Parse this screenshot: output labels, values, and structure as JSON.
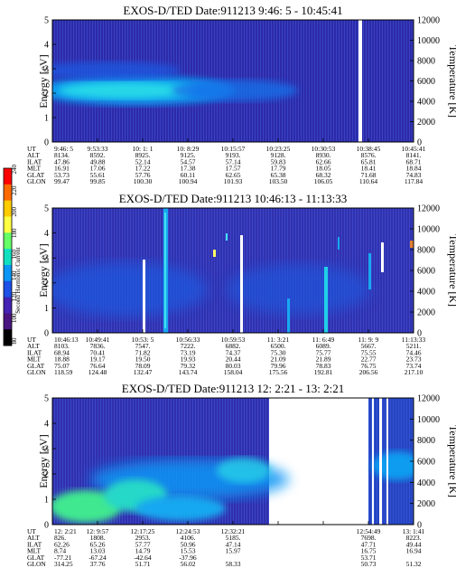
{
  "colorbar": {
    "label": "Second Harmonic Current",
    "ticks": [
      "240",
      "220",
      "200",
      "180",
      "160",
      "140",
      "120",
      "100",
      "80"
    ],
    "colors": [
      "#ff0000",
      "#ff6a00",
      "#ffcc00",
      "#ffff44",
      "#66ff66",
      "#11e0c0",
      "#0a96f5",
      "#1c50e6",
      "#4422b4",
      "#4a1580",
      "#000000"
    ]
  },
  "panels": [
    {
      "title": "EXOS-D/TED   Date:911213   9:46: 5 - 10:45:41",
      "ylabel_left": "Energy [eV]",
      "ylabel_right": "Temperature [K]",
      "energy_ticks": [
        "0",
        "1",
        "2",
        "3",
        "4",
        "5"
      ],
      "temp_ticks": [
        "0",
        "2000",
        "4000",
        "6000",
        "8000",
        "10000",
        "12000"
      ],
      "row_labels": [
        "UT",
        "ALT",
        "ILAT",
        "MLT",
        "GLAT",
        "GLON"
      ],
      "columns": [
        [
          "9:46: 5",
          "8134.",
          "47.86",
          "16.91",
          "53.73",
          "99.47"
        ],
        [
          "9:53:33",
          "8592.",
          "49.88",
          "17.06",
          "55.61",
          "99.85"
        ],
        [
          "10: 1: 1",
          "8925.",
          "52.14",
          "17.22",
          "57.76",
          "100.30"
        ],
        [
          "10: 8:29",
          "9125.",
          "54.57",
          "17.38",
          "60.11",
          "100.94"
        ],
        [
          "10:15:57",
          "9193.",
          "57.14",
          "17.57",
          "62.65",
          "101.93"
        ],
        [
          "10:23:25",
          "9128.",
          "59.83",
          "17.79",
          "65.38",
          "103.50"
        ],
        [
          "10:30:53",
          "8930.",
          "62.66",
          "18.05",
          "68.32",
          "106.05"
        ],
        [
          "10:38:45",
          "8576.",
          "65.81",
          "18.41",
          "71.68",
          "110.64"
        ],
        [
          "10:45:41",
          "8141.",
          "68.71",
          "18.84",
          "74.83",
          "117.84"
        ]
      ]
    },
    {
      "title": "EXOS-D/TED   Date:911213   10:46:13 - 11:13:33",
      "ylabel_left": "Energy [eV]",
      "ylabel_right": "Temperature [K]",
      "energy_ticks": [
        "0",
        "1",
        "2",
        "3",
        "4",
        "5"
      ],
      "temp_ticks": [
        "0",
        "2000",
        "4000",
        "6000",
        "8000",
        "10000",
        "12000"
      ],
      "row_labels": [
        "UT",
        "ALT",
        "ILAT",
        "MLT",
        "GLAT",
        "GLON"
      ],
      "columns": [
        [
          "10:46:13",
          "8103.",
          "68.94",
          "18.88",
          "75.07",
          "118.59"
        ],
        [
          "10:49:41",
          "7836.",
          "70.41",
          "19.17",
          "76.64",
          "124.48"
        ],
        [
          "10:53: 5",
          "7547.",
          "71.82",
          "19.50",
          "78.09",
          "132.47"
        ],
        [
          "10:56:33",
          "7222.",
          "73.19",
          "19.93",
          "79.32",
          "143.74"
        ],
        [
          "10:59:53",
          "6882.",
          "74.37",
          "20.44",
          "80.03",
          "158.04"
        ],
        [
          "11: 3:21",
          "6500.",
          "75.30",
          "21.09",
          "79.96",
          "175.56"
        ],
        [
          "11: 6:49",
          "6089.",
          "75.77",
          "21.89",
          "78.83",
          "192.81"
        ],
        [
          "11: 9: 9",
          "5667.",
          "75.55",
          "22.77",
          "76.75",
          "206.56"
        ],
        [
          "11:13:33",
          "5211.",
          "74.46",
          "23.73",
          "73.74",
          "217.10"
        ]
      ]
    },
    {
      "title": "EXOS-D/TED   Date:911213   12: 2:21 - 13: 2:21",
      "ylabel_left": "Energy [eV]",
      "ylabel_right": "Temperature [K]",
      "energy_ticks": [
        "0",
        "1",
        "2",
        "3",
        "4",
        "5"
      ],
      "temp_ticks": [
        "0",
        "2000",
        "4000",
        "6000",
        "8000",
        "10000",
        "12000"
      ],
      "row_labels": [
        "UT",
        "ALT",
        "ILAT",
        "MLT",
        "GLAT",
        "GLON"
      ],
      "columns": [
        [
          "12: 2:21",
          "826.",
          "62.26",
          "8.74",
          "-77.21",
          "314.25"
        ],
        [
          "12: 9:57",
          "1808.",
          "65.26",
          "13.03",
          "-67.24",
          "37.76"
        ],
        [
          "12:17:25",
          "2953.",
          "57.77",
          "14.79",
          "-42.64",
          "51.71"
        ],
        [
          "12:24:53",
          "4106.",
          "50.96",
          "15.53",
          "-37.96",
          "56.02"
        ],
        [
          "12:32:21",
          "5185.",
          "47.14",
          "15.97",
          "",
          "58.33"
        ],
        [
          "",
          "",
          "",
          "",
          "",
          ""
        ],
        [
          "",
          "",
          "",
          "",
          "",
          ""
        ],
        [
          "12:54:49",
          "7698.",
          "47.71",
          "16.75",
          "53.71",
          "50.73"
        ],
        [
          "13: 1:41",
          "8223.",
          "49.44",
          "16.94",
          "",
          "51.32"
        ]
      ]
    }
  ]
}
